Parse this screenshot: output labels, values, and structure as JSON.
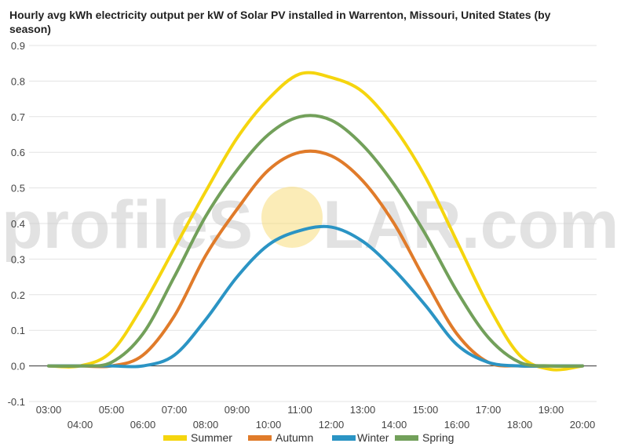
{
  "chart_data": {
    "type": "line",
    "title": "Hourly avg kWh electricity output per kW of Solar PV installed in Warrenton, Missouri, United States (by season)",
    "xlabel": "",
    "ylabel": "",
    "x": [
      "03:00",
      "04:00",
      "05:00",
      "06:00",
      "07:00",
      "08:00",
      "09:00",
      "10:00",
      "11:00",
      "12:00",
      "13:00",
      "14:00",
      "15:00",
      "16:00",
      "17:00",
      "18:00",
      "19:00",
      "20:00"
    ],
    "x_ticks_row1": [
      "03:00",
      "05:00",
      "07:00",
      "09:00",
      "11:00",
      "13:00",
      "15:00",
      "17:00",
      "19:00"
    ],
    "x_ticks_row2": [
      "04:00",
      "06:00",
      "08:00",
      "10:00",
      "12:00",
      "14:00",
      "16:00",
      "18:00",
      "20:00"
    ],
    "ylim": [
      -0.1,
      0.9
    ],
    "y_ticks": [
      "-0.1",
      "0.0",
      "0.1",
      "0.2",
      "0.3",
      "0.4",
      "0.5",
      "0.6",
      "0.7",
      "0.8",
      "0.9"
    ],
    "grid": true,
    "legend": "bottom",
    "series": [
      {
        "name": "Summer",
        "color": "#f5d50e",
        "values": [
          0.0,
          0.0,
          0.04,
          0.17,
          0.33,
          0.49,
          0.64,
          0.75,
          0.82,
          0.81,
          0.77,
          0.67,
          0.53,
          0.35,
          0.17,
          0.03,
          -0.01,
          0.0
        ]
      },
      {
        "name": "Autumn",
        "color": "#e07b2a",
        "values": [
          0.0,
          0.0,
          0.0,
          0.03,
          0.14,
          0.31,
          0.44,
          0.55,
          0.6,
          0.59,
          0.52,
          0.4,
          0.24,
          0.09,
          0.01,
          0.0,
          0.0,
          0.0
        ]
      },
      {
        "name": "Winter",
        "color": "#2b94c4",
        "values": [
          0.0,
          0.0,
          0.0,
          0.0,
          0.03,
          0.13,
          0.25,
          0.34,
          0.38,
          0.39,
          0.35,
          0.27,
          0.17,
          0.06,
          0.01,
          0.0,
          0.0,
          0.0
        ]
      },
      {
        "name": "Spring",
        "color": "#72a05a",
        "values": [
          0.0,
          0.0,
          0.01,
          0.09,
          0.25,
          0.42,
          0.55,
          0.65,
          0.7,
          0.69,
          0.62,
          0.51,
          0.37,
          0.21,
          0.08,
          0.01,
          0.0,
          0.0
        ]
      }
    ]
  },
  "watermark": {
    "left": "profileS",
    "right": "LAR.com"
  }
}
